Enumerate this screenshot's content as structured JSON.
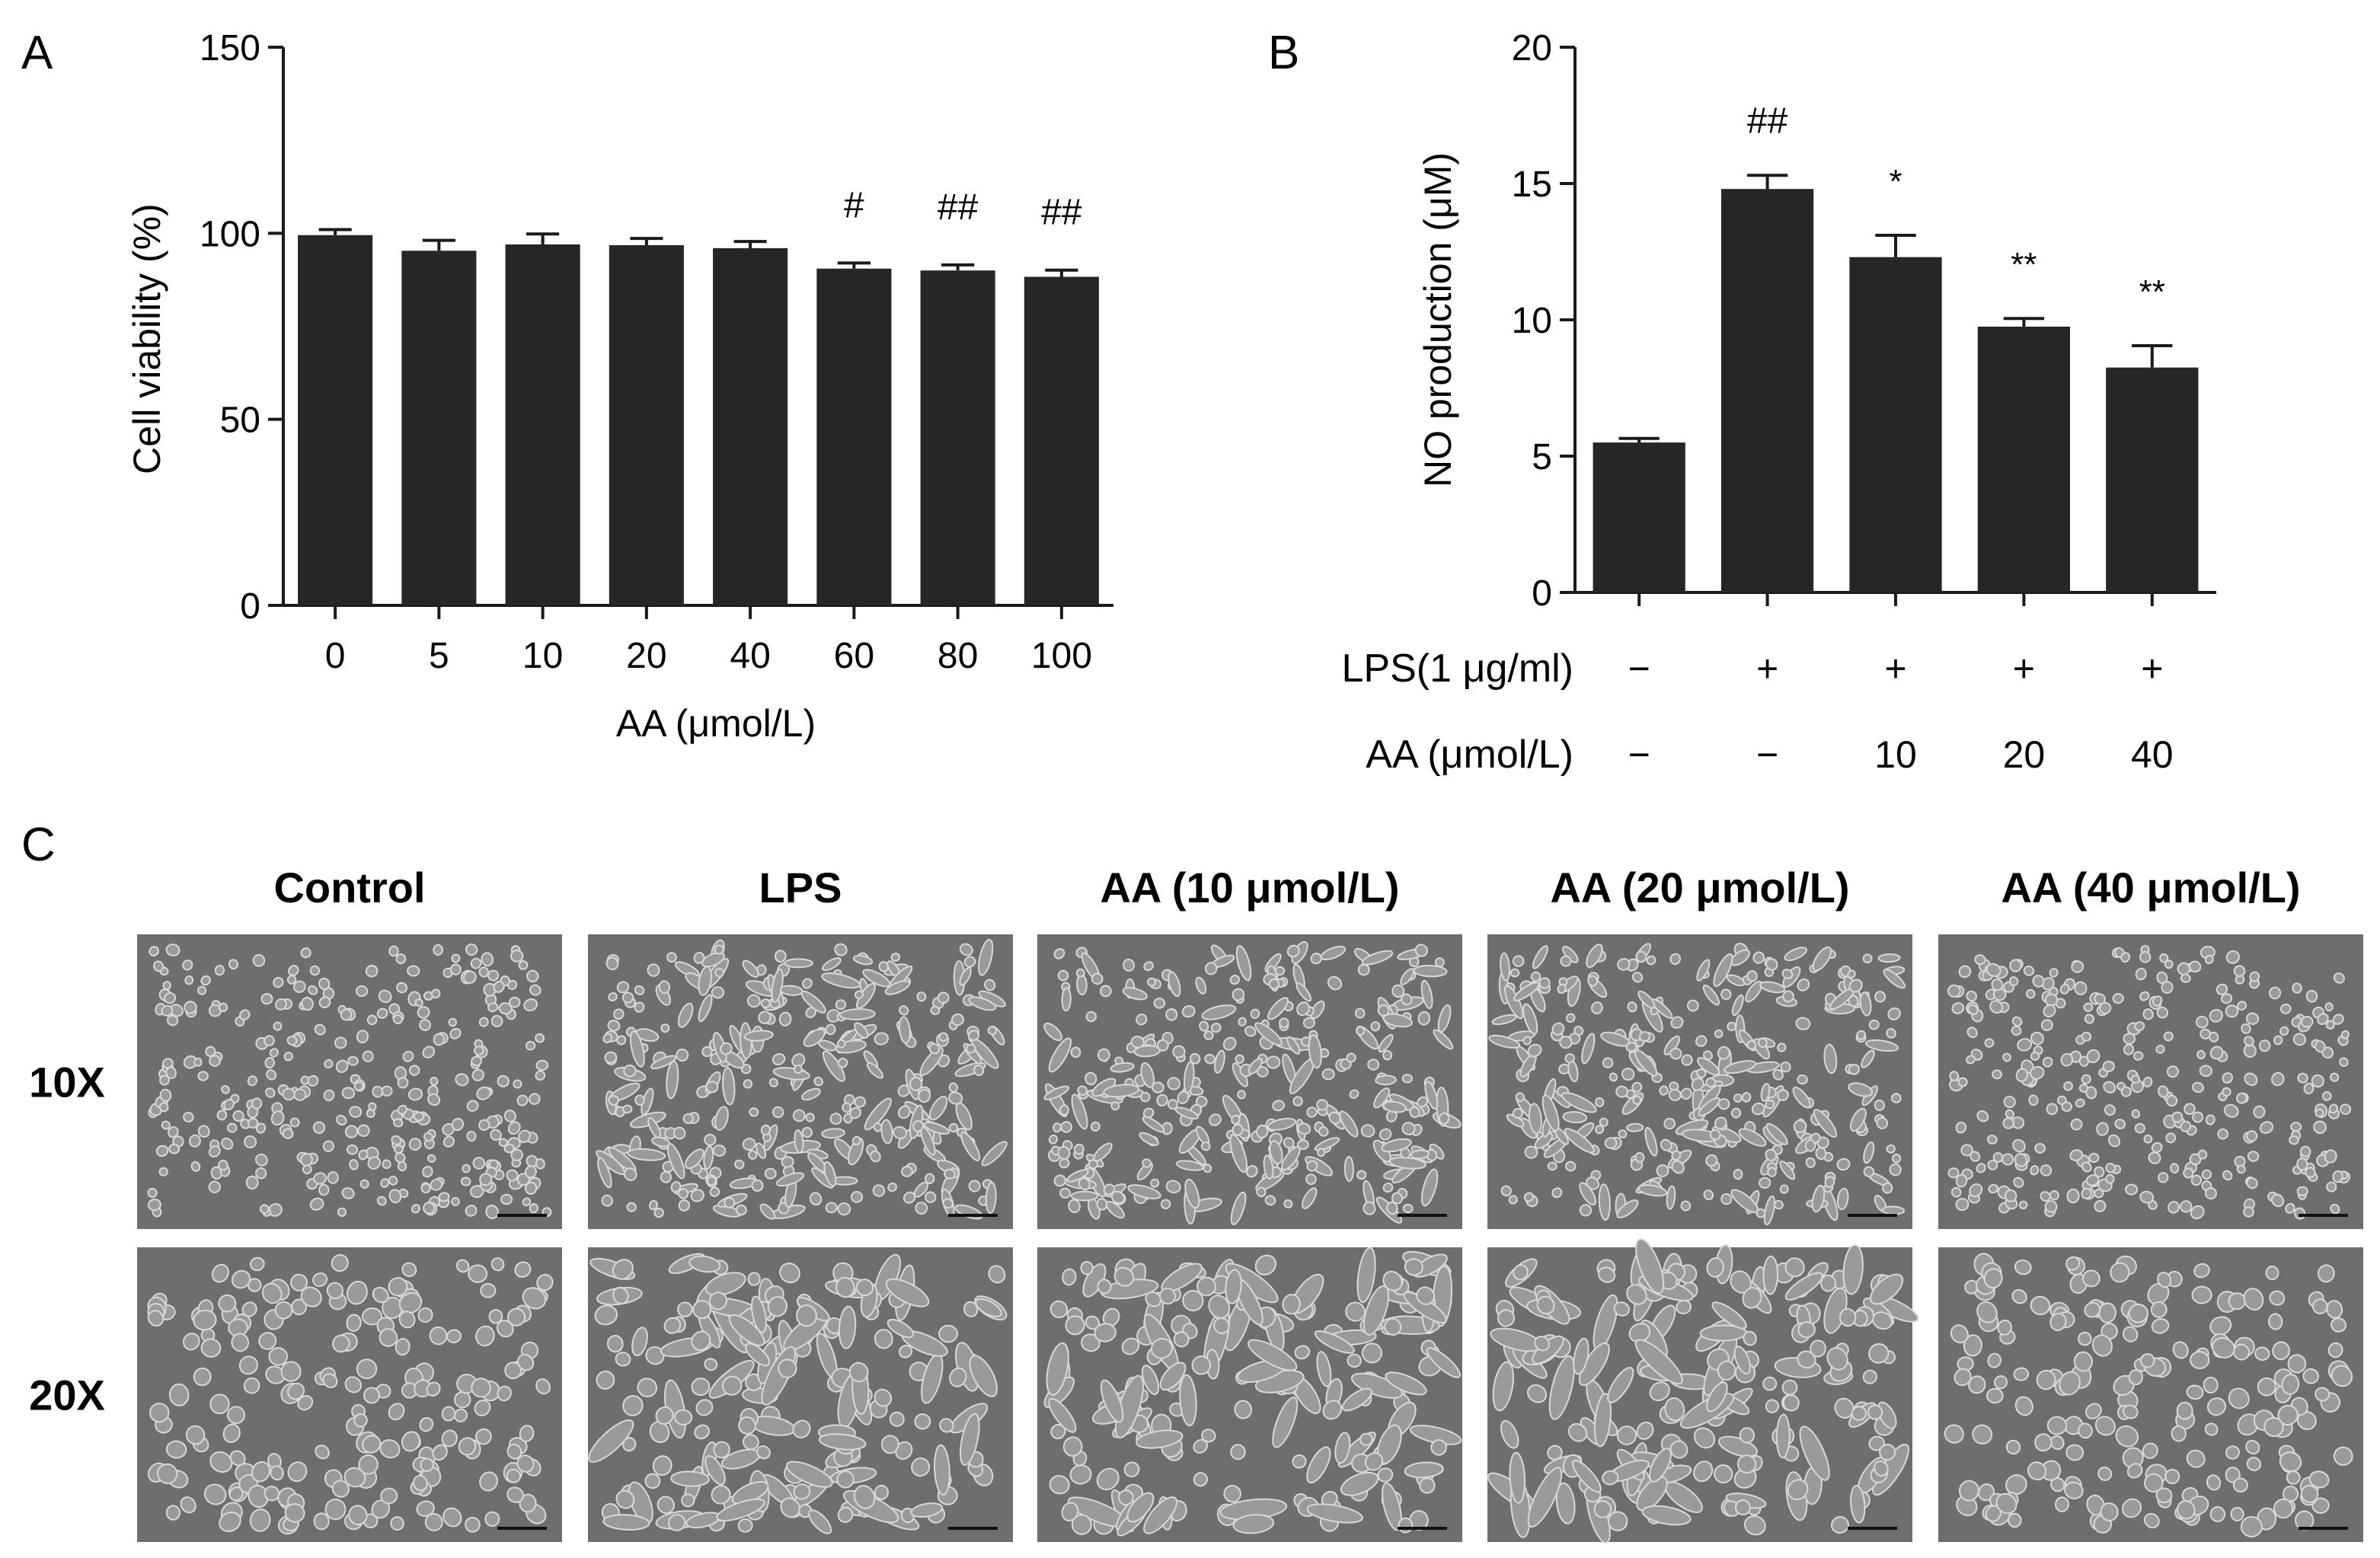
{
  "panels": {
    "a": "A",
    "b": "B",
    "c": "C"
  },
  "chart_data": [
    {
      "type": "bar",
      "ylabel": "Cell viability (%)",
      "xlabel": "AA (μmol/L)",
      "ylim": [
        0,
        150
      ],
      "yticks": [
        0,
        50,
        100,
        150
      ],
      "categories": [
        "0",
        "5",
        "10",
        "20",
        "40",
        "60",
        "80",
        "100"
      ],
      "values": [
        99.5,
        95.3,
        97.0,
        96.8,
        96.0,
        90.5,
        90.0,
        88.3
      ],
      "errors": [
        1.5,
        2.8,
        2.8,
        1.8,
        1.8,
        1.5,
        1.5,
        1.8
      ],
      "significance": [
        "",
        "",
        "",
        "",
        "",
        "#",
        "##",
        "##"
      ],
      "bar_color": "#262626"
    },
    {
      "type": "bar",
      "ylabel": "NO production (μM)",
      "ylim": [
        0,
        20
      ],
      "yticks": [
        0,
        5,
        10,
        15,
        20
      ],
      "values": [
        5.5,
        14.8,
        12.3,
        9.75,
        8.25
      ],
      "errors": [
        0.15,
        0.5,
        0.8,
        0.3,
        0.8
      ],
      "significance": [
        "",
        "##",
        "*",
        "**",
        "**"
      ],
      "condition_rows": [
        {
          "label": "LPS(1 μg/ml)",
          "values": [
            "−",
            "+",
            "+",
            "+",
            "+"
          ]
        },
        {
          "label": "AA (μmol/L)",
          "values": [
            "−",
            "−",
            "10",
            "20",
            "40"
          ]
        }
      ],
      "bar_color": "#262626"
    }
  ],
  "micrographs": {
    "columns": [
      "Control",
      "LPS",
      "AA (10 μmol/L)",
      "AA (20 μmol/L)",
      "AA (40 μmol/L)"
    ],
    "rows": [
      "10X",
      "20X"
    ],
    "background_color": "#6e6e6e"
  }
}
